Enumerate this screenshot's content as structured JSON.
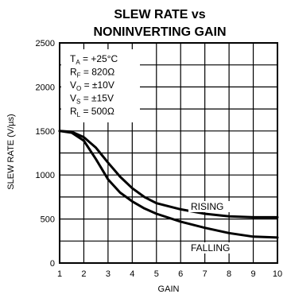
{
  "chart_data": {
    "type": "line",
    "title": "SLEW RATE vs",
    "subtitle": "NONINVERTING GAIN",
    "xlabel": "GAIN",
    "ylabel": "SLEW RATE (V/µs)",
    "xlim": [
      1,
      10
    ],
    "ylim": [
      0,
      2500
    ],
    "x_ticks": [
      "1",
      "2",
      "3",
      "4",
      "5",
      "6",
      "7",
      "8",
      "9",
      "10"
    ],
    "y_ticks": [
      "0",
      "500",
      "1000",
      "1500",
      "2000",
      "2500"
    ],
    "grid": true,
    "conditions": [
      {
        "sym": "T",
        "sub": "A",
        "val": " = +25°C"
      },
      {
        "sym": "R",
        "sub": "F",
        "val": " = 820Ω"
      },
      {
        "sym": "V",
        "sub": "O",
        "val": " = ±10V"
      },
      {
        "sym": "V",
        "sub": "S",
        "val": " = ±15V"
      },
      {
        "sym": "R",
        "sub": "L",
        "val": " = 500Ω"
      }
    ],
    "series": [
      {
        "name": "RISING",
        "x": [
          1,
          1.5,
          2,
          2.5,
          3,
          3.5,
          4,
          4.5,
          5,
          6,
          7,
          8,
          9,
          10
        ],
        "y": [
          1500,
          1490,
          1430,
          1310,
          1140,
          980,
          850,
          750,
          680,
          610,
          560,
          530,
          520,
          520
        ]
      },
      {
        "name": "FALLING",
        "x": [
          1,
          1.5,
          2,
          2.5,
          3,
          3.5,
          4,
          4.5,
          5,
          6,
          7,
          8,
          9,
          10
        ],
        "y": [
          1500,
          1480,
          1390,
          1180,
          950,
          800,
          700,
          620,
          560,
          470,
          400,
          340,
          300,
          290
        ]
      }
    ]
  }
}
